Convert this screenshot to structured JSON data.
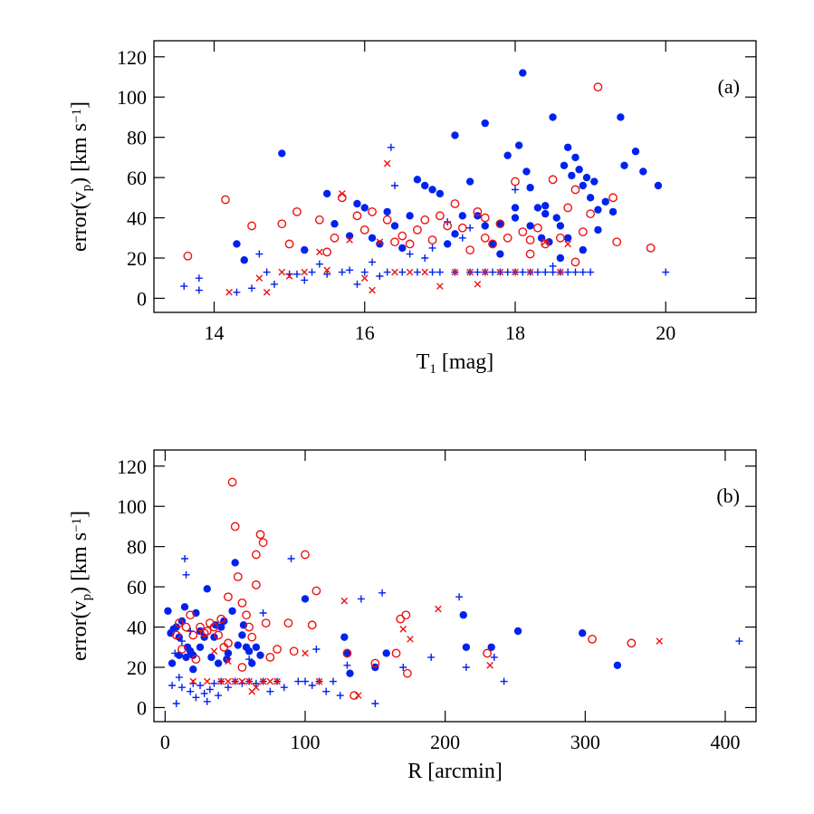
{
  "chart_data": [
    {
      "type": "scatter",
      "panel_label": "(a)",
      "xlabel": [
        "T",
        "1",
        " [mag]"
      ],
      "ylabel": [
        "error(v",
        "p",
        ") [km s",
        "−1",
        "]"
      ],
      "xlim": [
        13.2,
        21.2
      ],
      "ylim": [
        -7,
        128
      ],
      "xticks": [
        14,
        16,
        18,
        20
      ],
      "yticks": [
        0,
        20,
        40,
        60,
        80,
        100,
        120
      ],
      "series": [
        {
          "color": "#0022ee",
          "marker": "filled-circle",
          "x": [
            14.3,
            14.4,
            14.9,
            15.2,
            15.5,
            15.6,
            15.8,
            15.9,
            16.0,
            16.1,
            16.2,
            16.3,
            16.4,
            16.5,
            16.6,
            16.7,
            16.8,
            16.9,
            17.0,
            17.1,
            17.2,
            17.3,
            17.4,
            17.5,
            17.6,
            17.7,
            17.8,
            17.9,
            18.0,
            18.05,
            18.1,
            18.15,
            18.2,
            18.3,
            18.35,
            18.4,
            18.45,
            18.5,
            18.55,
            18.6,
            18.65,
            18.7,
            18.75,
            18.8,
            18.85,
            18.9,
            18.95,
            19.0,
            19.05,
            19.1,
            19.2,
            19.3,
            19.4,
            19.45,
            19.6,
            19.7,
            19.9,
            17.2,
            17.6,
            18.2,
            18.4,
            18.7,
            18.9,
            19.1,
            18.0,
            17.8,
            18.6
          ],
          "values": [
            27,
            19,
            72,
            24,
            52,
            37,
            31,
            47,
            45,
            30,
            27,
            43,
            36,
            25,
            41,
            59,
            56,
            54,
            52,
            27,
            81,
            41,
            58,
            41,
            87,
            27,
            37,
            71,
            45,
            76,
            112,
            63,
            55,
            45,
            30,
            46,
            28,
            90,
            40,
            36,
            66,
            75,
            61,
            70,
            64,
            56,
            60,
            50,
            58,
            44,
            48,
            43,
            90,
            66,
            73,
            63,
            56,
            32,
            36,
            36,
            42,
            30,
            24,
            34,
            40,
            22,
            20
          ]
        },
        {
          "color": "#0022ee",
          "marker": "plus",
          "x": [
            13.6,
            13.8,
            13.8,
            14.3,
            14.5,
            14.6,
            14.7,
            14.8,
            15.0,
            15.2,
            15.3,
            15.4,
            15.5,
            15.7,
            15.8,
            16.0,
            16.1,
            16.2,
            16.3,
            16.35,
            16.4,
            16.5,
            16.6,
            16.7,
            16.8,
            16.9,
            17.0,
            17.1,
            17.2,
            17.3,
            17.4,
            17.5,
            17.6,
            17.7,
            17.8,
            17.9,
            18.0,
            18.1,
            18.2,
            18.3,
            18.4,
            18.5,
            18.6,
            18.7,
            18.8,
            18.9,
            19.0,
            20.0,
            18.0,
            17.4,
            18.5,
            16.9,
            15.9,
            15.1
          ],
          "values": [
            6,
            4,
            10,
            3,
            5,
            22,
            13,
            7,
            12,
            9,
            13,
            17,
            12,
            13,
            14,
            13,
            18,
            11,
            13,
            75,
            56,
            13,
            22,
            13,
            20,
            13,
            13,
            38,
            13,
            30,
            13,
            13,
            13,
            13,
            13,
            13,
            13,
            13,
            13,
            13,
            13,
            13,
            13,
            13,
            13,
            13,
            13,
            13,
            54,
            35,
            16,
            25,
            7,
            12
          ]
        },
        {
          "color": "#ee1111",
          "marker": "open-circle",
          "x": [
            13.65,
            14.15,
            14.5,
            14.9,
            15.0,
            15.1,
            15.4,
            15.5,
            15.6,
            15.7,
            15.9,
            16.0,
            16.1,
            16.3,
            16.4,
            16.5,
            16.6,
            16.7,
            16.8,
            16.9,
            17.0,
            17.1,
            17.2,
            17.3,
            17.4,
            17.5,
            17.6,
            17.7,
            17.8,
            17.9,
            18.0,
            18.1,
            18.2,
            18.3,
            18.4,
            18.5,
            18.6,
            18.7,
            18.8,
            18.9,
            19.0,
            19.1,
            19.3,
            19.35,
            19.8,
            18.8,
            17.6,
            18.2
          ],
          "values": [
            21,
            49,
            36,
            37,
            27,
            43,
            39,
            23,
            30,
            50,
            41,
            34,
            43,
            39,
            28,
            31,
            27,
            34,
            39,
            29,
            41,
            36,
            47,
            35,
            24,
            43,
            40,
            27,
            37,
            30,
            58,
            33,
            29,
            35,
            27,
            59,
            30,
            45,
            54,
            33,
            42,
            105,
            50,
            28,
            25,
            18,
            30,
            22
          ]
        },
        {
          "color": "#ee1111",
          "marker": "x",
          "x": [
            14.2,
            14.6,
            14.7,
            14.9,
            15.0,
            15.2,
            15.4,
            15.5,
            15.7,
            15.8,
            16.0,
            16.1,
            16.2,
            16.3,
            16.4,
            16.6,
            16.8,
            17.0,
            17.2,
            17.4,
            17.5,
            17.6,
            17.8,
            18.0,
            18.2,
            18.4,
            18.6,
            18.7
          ],
          "values": [
            3,
            10,
            3,
            13,
            11,
            13,
            23,
            14,
            52,
            29,
            10,
            4,
            28,
            67,
            13,
            13,
            13,
            6,
            13,
            13,
            7,
            13,
            13,
            13,
            13,
            28,
            13,
            27
          ]
        }
      ]
    },
    {
      "type": "scatter",
      "panel_label": "(b)",
      "xlabel": [
        "R [arcmin]"
      ],
      "ylabel": [
        "error(v",
        "p",
        ") [km s",
        "−1",
        "]"
      ],
      "xlim": [
        -8,
        422
      ],
      "ylim": [
        -7,
        128
      ],
      "xticks": [
        0,
        100,
        200,
        300,
        400
      ],
      "yticks": [
        0,
        20,
        40,
        60,
        80,
        100,
        120
      ],
      "series": [
        {
          "color": "#0022ee",
          "marker": "filled-circle",
          "x": [
            2,
            4,
            6,
            8,
            10,
            12,
            14,
            16,
            18,
            20,
            22,
            25,
            28,
            30,
            33,
            36,
            38,
            40,
            42,
            45,
            48,
            50,
            52,
            55,
            58,
            60,
            62,
            65,
            68,
            100,
            128,
            130,
            132,
            150,
            158,
            213,
            215,
            233,
            252,
            298,
            323,
            5,
            10,
            15,
            20,
            25,
            35,
            44,
            56
          ],
          "values": [
            48,
            37,
            39,
            40,
            35,
            43,
            50,
            30,
            28,
            26,
            47,
            38,
            35,
            59,
            25,
            41,
            22,
            40,
            43,
            27,
            48,
            72,
            31,
            36,
            30,
            28,
            22,
            30,
            26,
            54,
            35,
            27,
            17,
            20,
            27,
            46,
            30,
            30,
            38,
            37,
            21,
            22,
            26,
            25,
            19,
            30,
            35,
            24,
            41
          ]
        },
        {
          "color": "#0022ee",
          "marker": "plus",
          "x": [
            5,
            8,
            10,
            12,
            14,
            15,
            18,
            20,
            22,
            25,
            28,
            30,
            32,
            35,
            38,
            40,
            45,
            50,
            55,
            60,
            65,
            70,
            75,
            80,
            85,
            90,
            95,
            100,
            105,
            110,
            115,
            120,
            125,
            130,
            140,
            150,
            155,
            170,
            190,
            210,
            215,
            235,
            242,
            410,
            7,
            12,
            18,
            60,
            70,
            108
          ],
          "values": [
            11,
            2,
            15,
            10,
            74,
            66,
            8,
            12,
            5,
            11,
            7,
            3,
            9,
            12,
            6,
            13,
            10,
            13,
            12,
            13,
            12,
            13,
            8,
            13,
            10,
            74,
            13,
            13,
            11,
            13,
            8,
            13,
            6,
            21,
            54,
            2,
            57,
            20,
            25,
            55,
            20,
            25,
            13,
            33,
            27,
            33,
            38,
            24,
            47,
            29
          ]
        },
        {
          "color": "#ee1111",
          "marker": "open-circle",
          "x": [
            8,
            10,
            12,
            15,
            18,
            20,
            22,
            25,
            28,
            30,
            32,
            35,
            38,
            40,
            42,
            45,
            48,
            50,
            52,
            55,
            58,
            60,
            62,
            65,
            68,
            70,
            72,
            75,
            80,
            88,
            92,
            100,
            105,
            108,
            130,
            135,
            150,
            165,
            168,
            172,
            173,
            230,
            305,
            333,
            45,
            55,
            65
          ],
          "values": [
            36,
            42,
            29,
            40,
            46,
            36,
            24,
            40,
            37,
            38,
            42,
            40,
            36,
            44,
            30,
            55,
            112,
            90,
            65,
            52,
            46,
            40,
            35,
            61,
            86,
            82,
            42,
            25,
            29,
            42,
            28,
            76,
            41,
            58,
            27,
            6,
            22,
            27,
            44,
            46,
            17,
            27,
            34,
            32,
            32,
            20,
            76
          ]
        },
        {
          "color": "#ee1111",
          "marker": "x",
          "x": [
            20,
            30,
            35,
            40,
            45,
            50,
            55,
            60,
            65,
            70,
            75,
            80,
            100,
            110,
            128,
            138,
            170,
            175,
            195,
            232,
            353,
            45,
            62
          ],
          "values": [
            13,
            13,
            28,
            13,
            13,
            13,
            13,
            13,
            10,
            13,
            13,
            13,
            27,
            13,
            53,
            6,
            39,
            34,
            49,
            21,
            33,
            23,
            8
          ]
        }
      ]
    }
  ]
}
